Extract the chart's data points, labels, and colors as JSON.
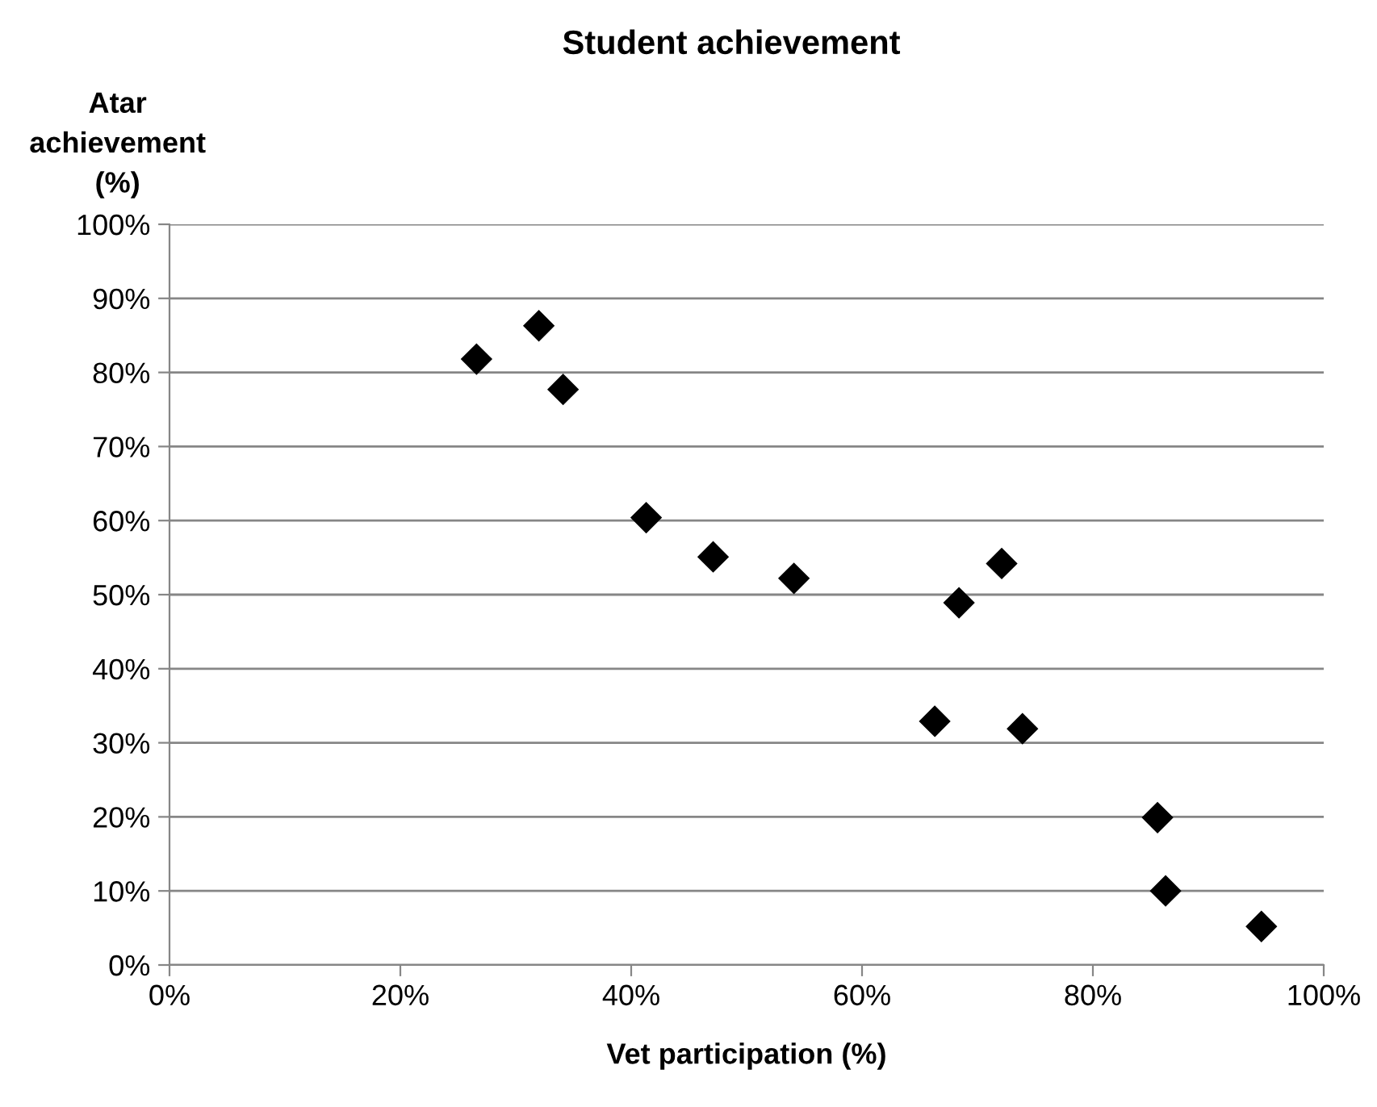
{
  "chart_data": {
    "type": "scatter",
    "title": "Student achievement",
    "xlabel": "Vet participation (%)",
    "ylabel": "Atar\nachievement\n(%)",
    "x": [
      26.6,
      32.0,
      34.1,
      41.3,
      47.1,
      54.1,
      68.4,
      72.1,
      66.3,
      73.9,
      85.6,
      86.3,
      94.6
    ],
    "series": [
      {
        "color": "#000000",
        "values": [
          81.8,
          86.3,
          77.7,
          60.4,
          55.1,
          52.2,
          48.9,
          54.2,
          32.9,
          31.9,
          19.9,
          10.0,
          5.2
        ]
      }
    ],
    "xlim": [
      0,
      100
    ],
    "ylim": [
      0,
      100
    ],
    "xticks": [
      {
        "value": 0,
        "label": "0%"
      },
      {
        "value": 20,
        "label": "20%"
      },
      {
        "value": 40,
        "label": "40%"
      },
      {
        "value": 60,
        "label": "60%"
      },
      {
        "value": 80,
        "label": "80%"
      },
      {
        "value": 100,
        "label": "100%"
      }
    ],
    "yticks": [
      {
        "value": 0,
        "label": "0%"
      },
      {
        "value": 10,
        "label": "10%"
      },
      {
        "value": 20,
        "label": "20%"
      },
      {
        "value": 30,
        "label": "30%"
      },
      {
        "value": 40,
        "label": "40%"
      },
      {
        "value": 50,
        "label": "50%"
      },
      {
        "value": 60,
        "label": "60%"
      },
      {
        "value": 70,
        "label": "70%"
      },
      {
        "value": 80,
        "label": "80%"
      },
      {
        "value": 90,
        "label": "90%"
      },
      {
        "value": 100,
        "label": "100%"
      }
    ],
    "grid": "y",
    "marker": "diamond"
  }
}
